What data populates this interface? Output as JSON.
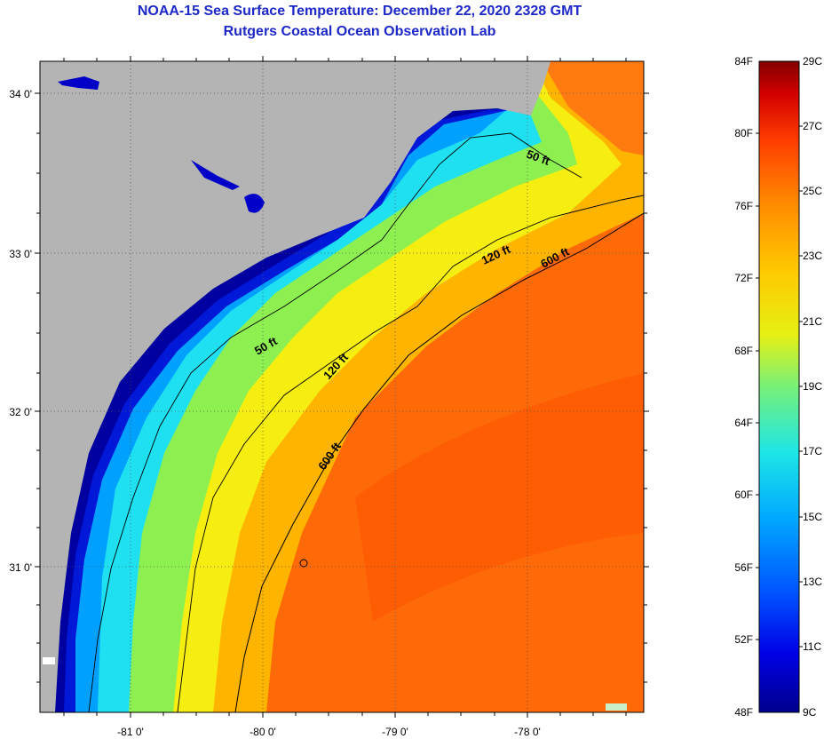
{
  "title": "NOAA-15 Sea Surface Temperature:  December 22, 2020 2328 GMT",
  "subtitle": "Rutgers Coastal Ocean Observation Lab",
  "lat_ticks": [
    "34 0'",
    "33 0'",
    "32 0'",
    "31 0'"
  ],
  "lon_ticks": [
    "-81 0'",
    "-80 0'",
    "-79 0'",
    "-78 0'"
  ],
  "contour_labels": [
    "50 ft",
    "120 ft",
    "600 ft",
    "50 ft",
    "120 ft",
    "600 ft"
  ],
  "colorbar": {
    "fahrenheit": [
      "84F",
      "80F",
      "76F",
      "72F",
      "68F",
      "64F",
      "60F",
      "56F",
      "52F",
      "48F"
    ],
    "celsius": [
      "29C",
      "27C",
      "25C",
      "23C",
      "21C",
      "19C",
      "17C",
      "15C",
      "13C",
      "11C",
      "9C"
    ]
  },
  "colors": {
    "land": "#b4b4b4",
    "title": "#1c28c8",
    "scale": [
      "#00008c",
      "#0000e6",
      "#0050ff",
      "#00aaff",
      "#1ee6e6",
      "#78f078",
      "#e6f014",
      "#ffc800",
      "#ff8c00",
      "#ff3c00",
      "#d20000",
      "#820000"
    ]
  }
}
